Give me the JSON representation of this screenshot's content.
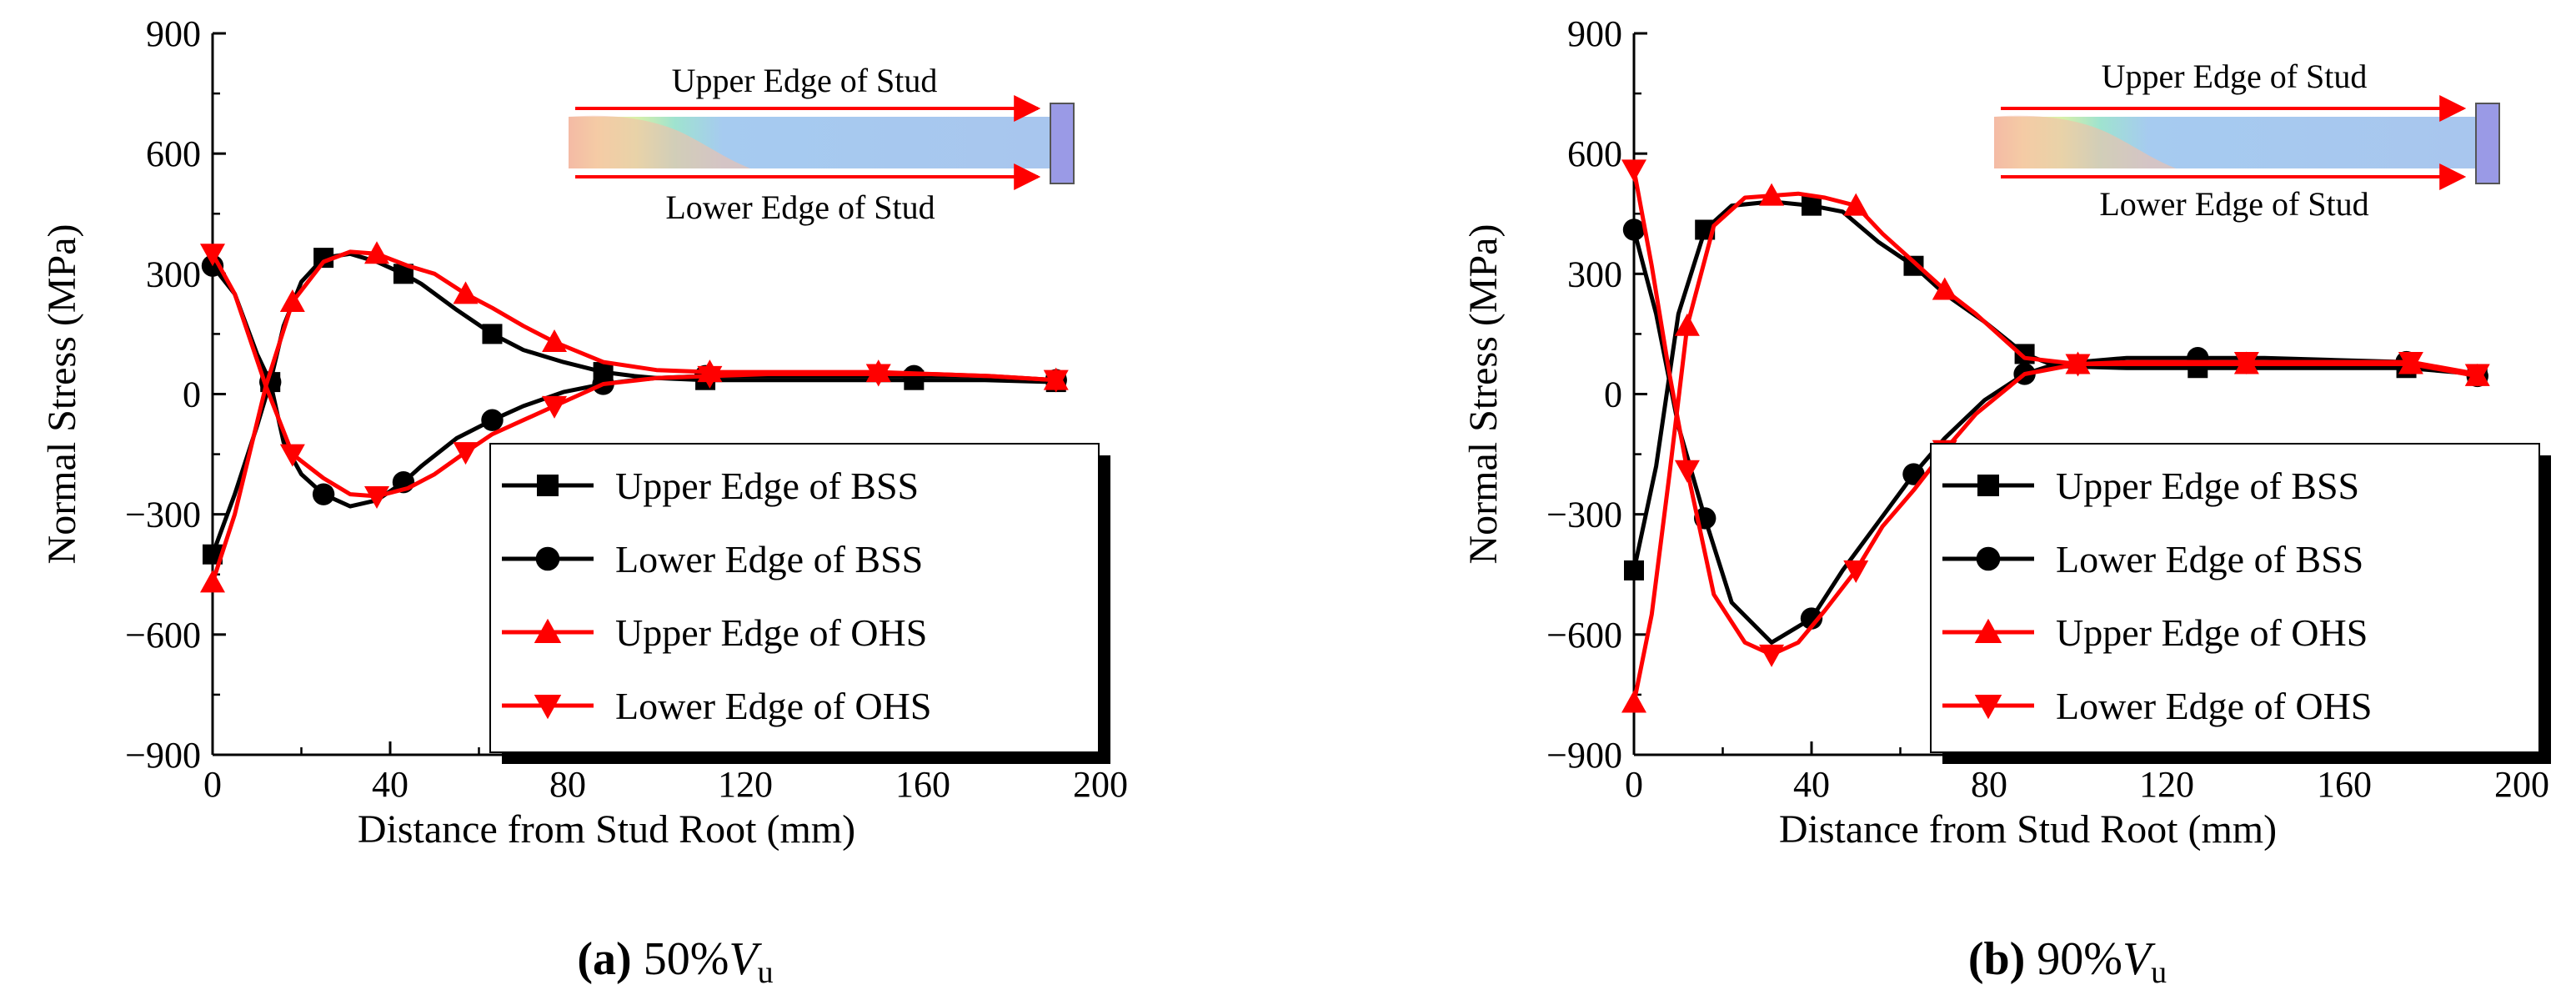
{
  "chart_data": [
    {
      "type": "line",
      "panel_label": "(a)",
      "caption_value": "50%",
      "caption_var": "V",
      "caption_sub": "u",
      "xlabel": "Distance from Stud Root (mm)",
      "ylabel": "Normal Stress (MPa)",
      "xlim": [
        0,
        200
      ],
      "ylim": [
        -900,
        900
      ],
      "xticks": [
        0,
        40,
        80,
        120,
        160,
        200
      ],
      "yticks": [
        -900,
        -600,
        -300,
        0,
        300,
        600,
        900
      ],
      "ytick_labels": [
        "−900",
        "−600",
        "−300",
        "0",
        "300",
        "600",
        "900"
      ],
      "inset": {
        "upper_label": "Upper Edge of Stud",
        "lower_label": "Lower Edge of Stud"
      },
      "series": [
        {
          "name": "Upper Edge of BSS",
          "color": "#000000",
          "marker": "square",
          "x": [
            0,
            5,
            10,
            13,
            16,
            20,
            25,
            31,
            37,
            43,
            47,
            55,
            63,
            70,
            79,
            88,
            95,
            100,
            111,
            127,
            142,
            158,
            174,
            190
          ],
          "y": [
            -400,
            -250,
            -80,
            30,
            170,
            280,
            340,
            350,
            330,
            300,
            275,
            210,
            150,
            110,
            80,
            55,
            45,
            40,
            35,
            35,
            35,
            35,
            35,
            30
          ]
        },
        {
          "name": "Lower Edge of BSS",
          "color": "#000000",
          "marker": "circle",
          "x": [
            0,
            5,
            10,
            13,
            16,
            20,
            25,
            31,
            37,
            43,
            47,
            55,
            63,
            70,
            79,
            88,
            95,
            100,
            111,
            127,
            142,
            158,
            174,
            190
          ],
          "y": [
            320,
            250,
            100,
            30,
            -120,
            -200,
            -250,
            -280,
            -265,
            -220,
            -180,
            -110,
            -65,
            -30,
            5,
            25,
            35,
            40,
            45,
            45,
            45,
            45,
            45,
            35
          ]
        },
        {
          "name": "Upper Edge of OHS",
          "color": "#ff0000",
          "marker": "triangle-up",
          "x": [
            0,
            5,
            12,
            18,
            25,
            31,
            37,
            44,
            50,
            57,
            63,
            70,
            77,
            88,
            100,
            112,
            125,
            138,
            150,
            162,
            175,
            190
          ],
          "y": [
            -470,
            -300,
            20,
            230,
            330,
            355,
            350,
            320,
            300,
            250,
            215,
            170,
            130,
            80,
            60,
            55,
            55,
            55,
            55,
            50,
            45,
            35
          ]
        },
        {
          "name": "Lower Edge of OHS",
          "color": "#ff0000",
          "marker": "triangle-down",
          "x": [
            0,
            5,
            12,
            18,
            25,
            31,
            37,
            44,
            50,
            57,
            63,
            70,
            77,
            88,
            100,
            112,
            125,
            138,
            150,
            162,
            175,
            190
          ],
          "y": [
            350,
            250,
            20,
            -150,
            -210,
            -250,
            -255,
            -235,
            -200,
            -145,
            -100,
            -65,
            -30,
            25,
            40,
            45,
            50,
            50,
            50,
            50,
            45,
            35
          ]
        }
      ]
    },
    {
      "type": "line",
      "panel_label": "(b)",
      "caption_value": "90%",
      "caption_var": "V",
      "caption_sub": "u",
      "xlabel": "Distance from Stud Root (mm)",
      "ylabel": "Normal Stress (MPa)",
      "xlim": [
        0,
        200
      ],
      "ylim": [
        -900,
        900
      ],
      "xticks": [
        0,
        40,
        80,
        120,
        160,
        200
      ],
      "yticks": [
        -900,
        -600,
        -300,
        0,
        300,
        600,
        900
      ],
      "ytick_labels": [
        "−900",
        "−600",
        "−300",
        "0",
        "300",
        "600",
        "900"
      ],
      "inset": {
        "upper_label": "Upper Edge of Stud",
        "lower_label": "Lower Edge of Stud"
      },
      "series": [
        {
          "name": "Upper Edge of BSS",
          "color": "#000000",
          "marker": "square",
          "x": [
            0,
            5,
            10,
            16,
            22,
            31,
            40,
            47,
            55,
            63,
            70,
            79,
            88,
            95,
            111,
            127,
            142,
            158,
            174,
            190
          ],
          "y": [
            -440,
            -180,
            200,
            410,
            470,
            480,
            470,
            455,
            380,
            320,
            250,
            180,
            100,
            70,
            65,
            65,
            65,
            65,
            65,
            50
          ]
        },
        {
          "name": "Lower Edge of BSS",
          "color": "#000000",
          "marker": "circle",
          "x": [
            0,
            5,
            10,
            16,
            22,
            31,
            40,
            47,
            55,
            63,
            70,
            79,
            88,
            95,
            111,
            127,
            142,
            158,
            174,
            190
          ],
          "y": [
            410,
            200,
            -80,
            -310,
            -520,
            -620,
            -560,
            -440,
            -320,
            -200,
            -110,
            -15,
            50,
            75,
            90,
            90,
            90,
            85,
            80,
            45
          ]
        },
        {
          "name": "Upper Edge of OHS",
          "color": "#ff0000",
          "marker": "triangle-up",
          "x": [
            0,
            4,
            8,
            12,
            18,
            25,
            31,
            37,
            43,
            50,
            56,
            63,
            70,
            77,
            88,
            100,
            112,
            125,
            138,
            150,
            162,
            175,
            190
          ],
          "y": [
            -770,
            -550,
            -200,
            170,
            420,
            490,
            495,
            500,
            490,
            470,
            400,
            330,
            260,
            200,
            90,
            75,
            75,
            75,
            75,
            75,
            75,
            75,
            45
          ]
        },
        {
          "name": "Lower Edge of OHS",
          "color": "#ff0000",
          "marker": "triangle-down",
          "x": [
            0,
            4,
            8,
            12,
            18,
            25,
            31,
            37,
            43,
            50,
            56,
            63,
            70,
            77,
            88,
            100,
            112,
            125,
            138,
            150,
            162,
            175,
            190
          ],
          "y": [
            560,
            320,
            50,
            -190,
            -500,
            -620,
            -650,
            -620,
            -540,
            -440,
            -330,
            -240,
            -140,
            -50,
            50,
            75,
            80,
            80,
            80,
            80,
            80,
            80,
            50
          ]
        }
      ]
    }
  ]
}
